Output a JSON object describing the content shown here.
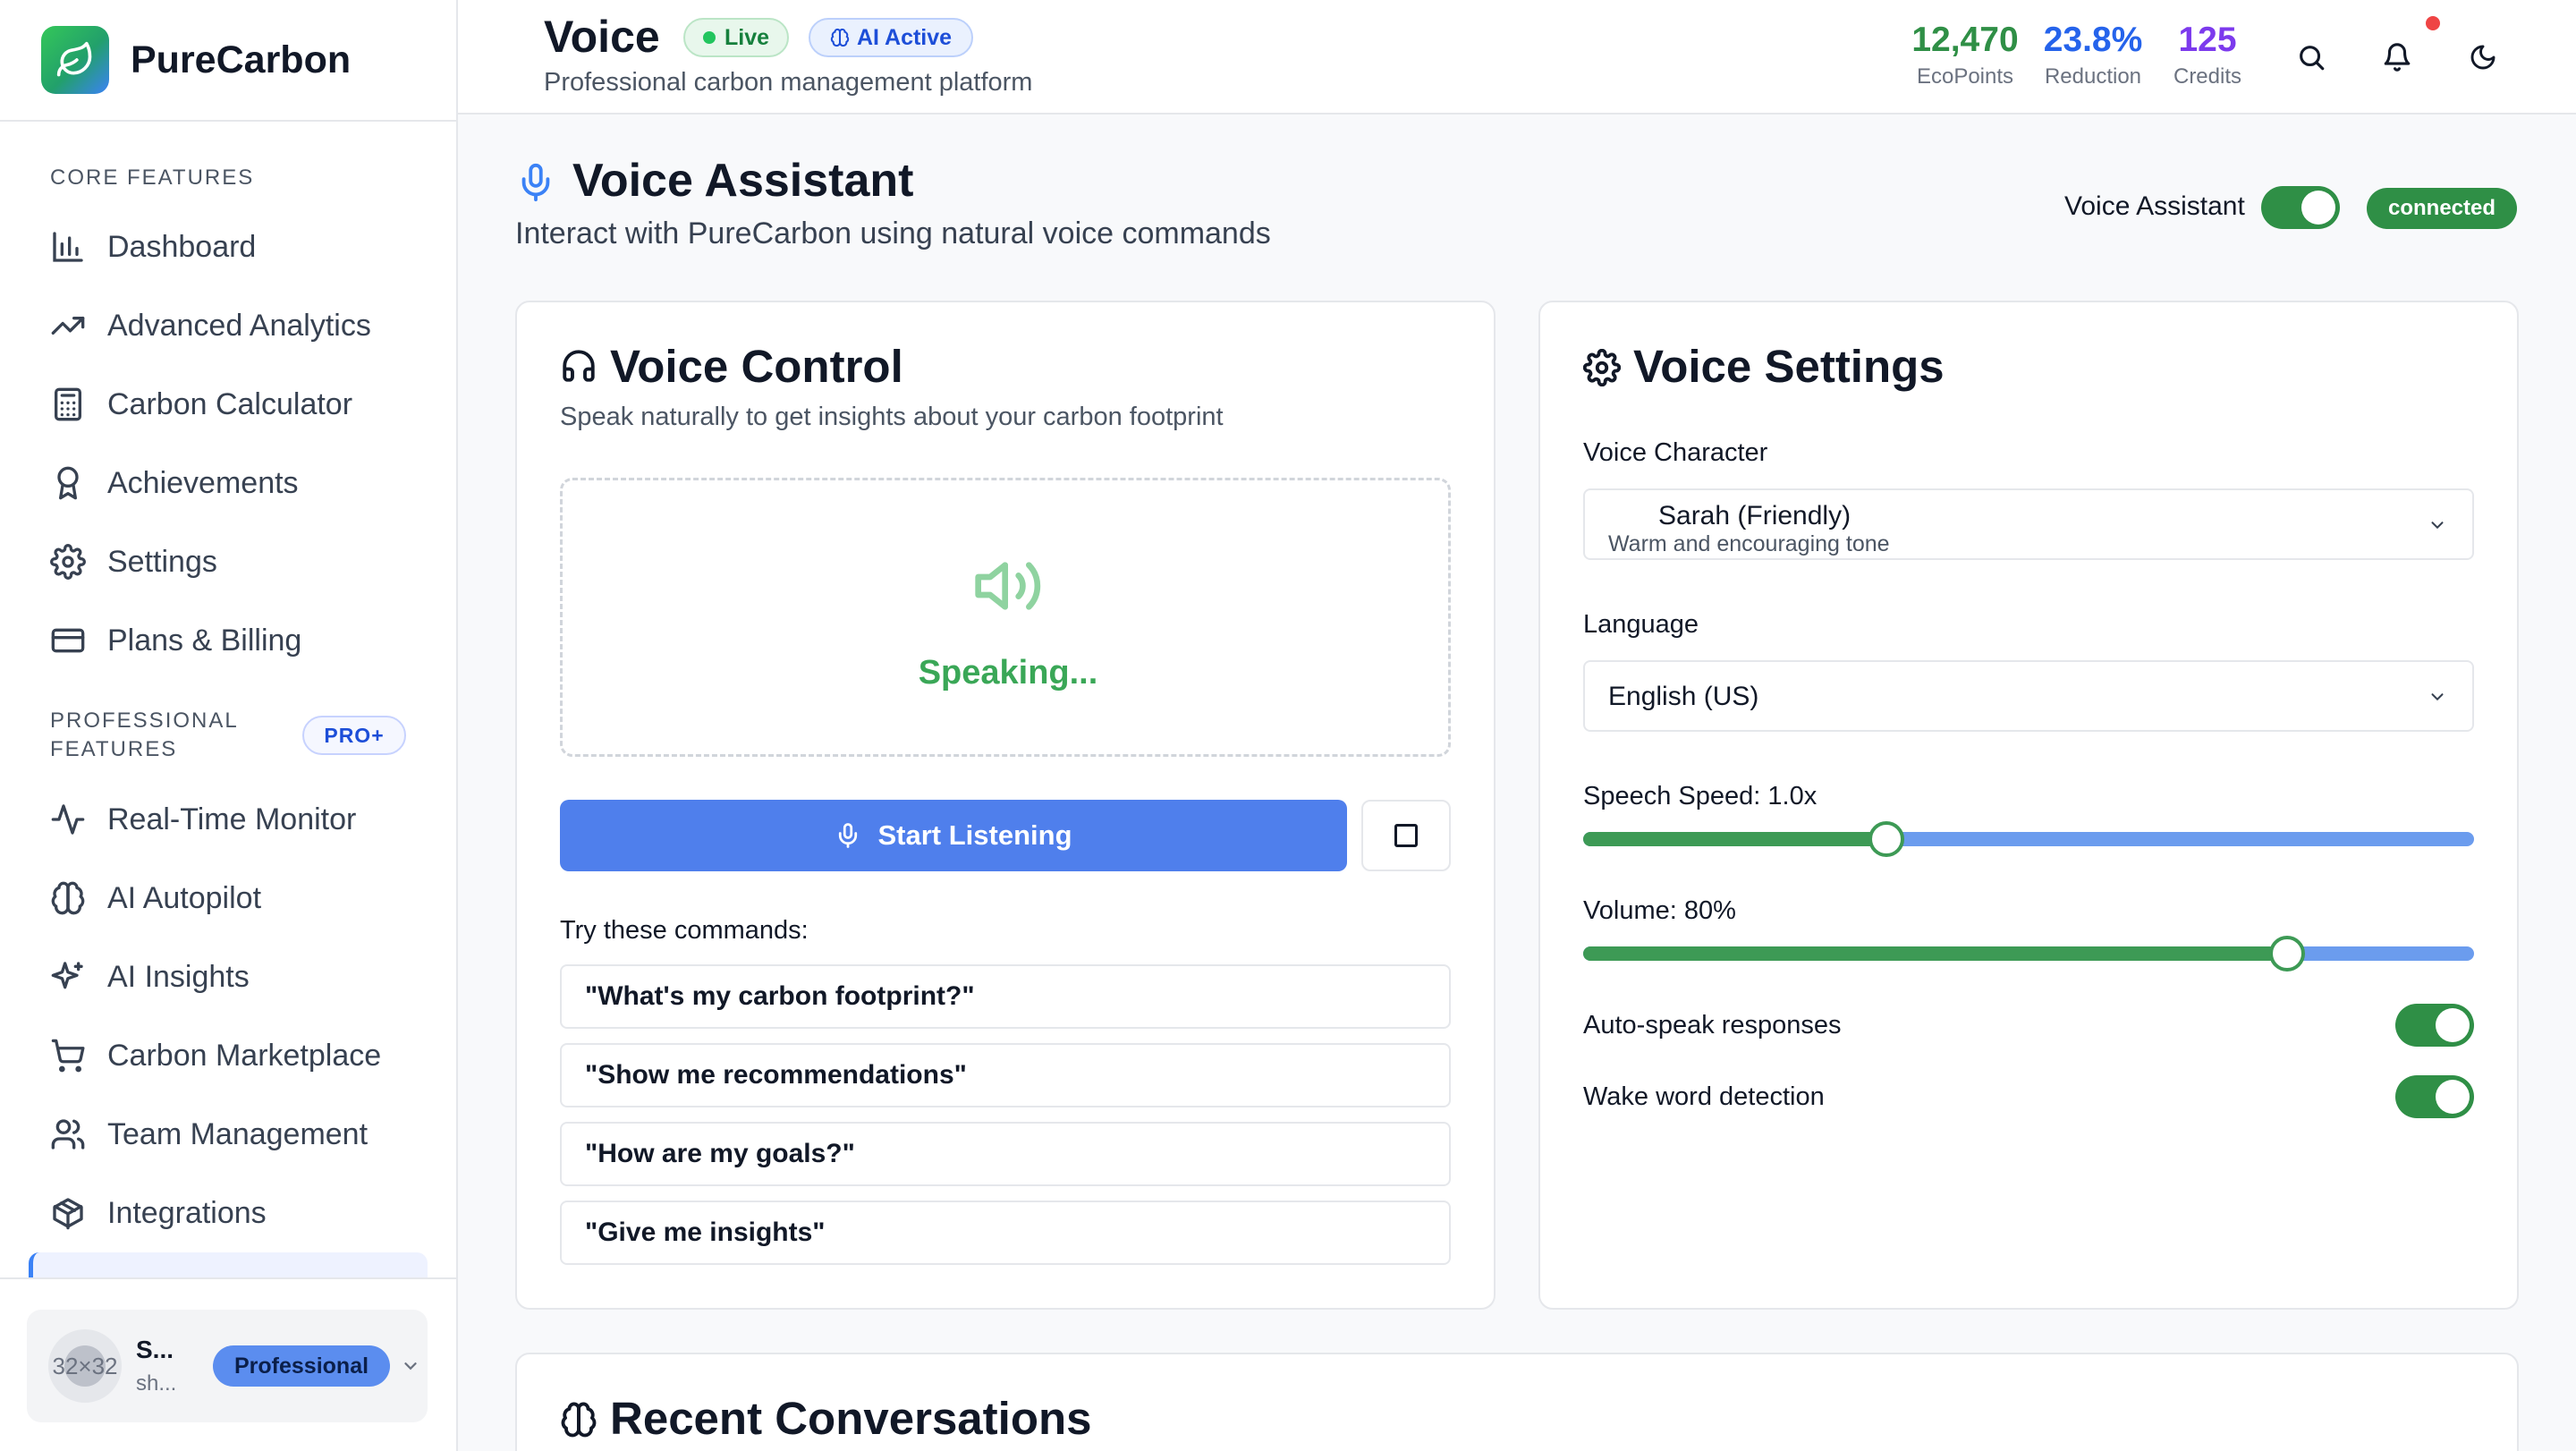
{
  "app": {
    "name": "PureCarbon"
  },
  "sidebar": {
    "core_label": "CORE FEATURES",
    "core_items": [
      {
        "label": "Dashboard",
        "icon": "bar-chart-icon"
      },
      {
        "label": "Advanced Analytics",
        "icon": "trending-up-icon"
      },
      {
        "label": "Carbon Calculator",
        "icon": "calculator-icon"
      },
      {
        "label": "Achievements",
        "icon": "award-icon"
      },
      {
        "label": "Settings",
        "icon": "gear-icon"
      },
      {
        "label": "Plans & Billing",
        "icon": "credit-card-icon"
      }
    ],
    "pro_label": "PROFESSIONAL FEATURES",
    "pro_badge": "PRO+",
    "pro_items": [
      {
        "label": "Real-Time Monitor",
        "icon": "activity-icon"
      },
      {
        "label": "AI Autopilot",
        "icon": "brain-icon"
      },
      {
        "label": "AI Insights",
        "icon": "sparkles-icon"
      },
      {
        "label": "Carbon Marketplace",
        "icon": "cart-icon"
      },
      {
        "label": "Team Management",
        "icon": "users-icon"
      },
      {
        "label": "Integrations",
        "icon": "package-icon"
      }
    ],
    "user": {
      "avatar_text": "32×32",
      "name": "S...",
      "email": "sh...",
      "plan": "Professional"
    }
  },
  "header": {
    "title": "Voice",
    "badge_live": "Live",
    "badge_ai": "AI Active",
    "subtitle": "Professional carbon management platform",
    "stats": [
      {
        "value": "12,470",
        "label": "EcoPoints",
        "color": "#2f8f46"
      },
      {
        "value": "23.8%",
        "label": "Reduction",
        "color": "#2563eb"
      },
      {
        "value": "125",
        "label": "Credits",
        "color": "#7c3aed"
      }
    ]
  },
  "assistant": {
    "title": "Voice Assistant",
    "subtitle": "Interact with PureCarbon using natural voice commands",
    "toggle_label": "Voice Assistant",
    "toggle_on": true,
    "status": "connected"
  },
  "voice_control": {
    "title": "Voice Control",
    "subtitle": "Speak naturally to get insights about your carbon footprint",
    "speaking_text": "Speaking...",
    "start_label": "Start Listening",
    "try_label": "Try these commands:",
    "commands": [
      "\"What's my carbon footprint?\"",
      "\"Show me recommendations\"",
      "\"How are my goals?\"",
      "\"Give me insights\""
    ]
  },
  "voice_settings": {
    "title": "Voice Settings",
    "character_label": "Voice Character",
    "character_value": "Sarah (Friendly)",
    "character_desc": "Warm and encouraging tone",
    "language_label": "Language",
    "language_value": "English (US)",
    "speed_label": "Speech Speed: 1.0x",
    "speed_fraction": 0.34,
    "volume_label": "Volume: 80%",
    "volume_fraction": 0.79,
    "auto_speak_label": "Auto-speak responses",
    "auto_speak_on": true,
    "wake_word_label": "Wake word detection",
    "wake_word_on": true
  },
  "recent": {
    "title": "Recent Conversations"
  },
  "colors": {
    "primary_green": "#2f8f46",
    "primary_blue": "#4f7fec",
    "speaking_green": "#3aa757"
  }
}
